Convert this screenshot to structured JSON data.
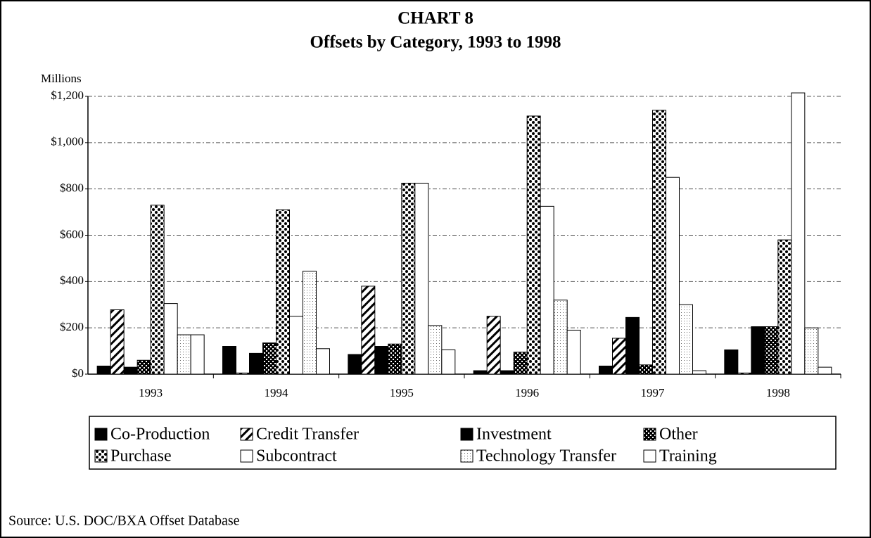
{
  "chart_data": {
    "type": "bar",
    "title": "CHART 8",
    "subtitle": "Offsets by Category, 1993 to 1998",
    "y_label": "Millions",
    "source": "Source: U.S. DOC/BXA Offset Database",
    "categories": [
      "1993",
      "1994",
      "1995",
      "1996",
      "1997",
      "1998"
    ],
    "series": [
      {
        "name": "Co-Production",
        "color": "#000000",
        "pattern": "solid",
        "values": [
          35,
          120,
          85,
          15,
          35,
          105
        ]
      },
      {
        "name": "Credit Transfer",
        "color": "#000000",
        "pattern": "hatch",
        "values": [
          278,
          5,
          380,
          250,
          155,
          5
        ]
      },
      {
        "name": "Investment",
        "color": "#000000",
        "pattern": "solid",
        "values": [
          30,
          90,
          120,
          15,
          245,
          205
        ]
      },
      {
        "name": "Other",
        "color": "#000000",
        "pattern": "checker",
        "values": [
          60,
          135,
          130,
          95,
          40,
          205
        ]
      },
      {
        "name": "Purchase",
        "color": "#000000",
        "pattern": "dots",
        "values": [
          730,
          710,
          825,
          1115,
          1140,
          580
        ]
      },
      {
        "name": "Subcontract",
        "color": "#000000",
        "pattern": "none",
        "values": [
          305,
          250,
          825,
          725,
          850,
          1215
        ]
      },
      {
        "name": "Technology Transfer",
        "color": "#000000",
        "pattern": "light-dots",
        "values": [
          170,
          445,
          210,
          320,
          300,
          200
        ]
      },
      {
        "name": "Training",
        "color": "#000000",
        "pattern": "none",
        "values": [
          170,
          110,
          105,
          190,
          15,
          30
        ]
      }
    ],
    "ylim": [
      0,
      1200
    ],
    "yticks": [
      {
        "value": 0,
        "label": "$0"
      },
      {
        "value": 200,
        "label": "$200"
      },
      {
        "value": 400,
        "label": "$400"
      },
      {
        "value": 600,
        "label": "$600"
      },
      {
        "value": 800,
        "label": "$800"
      },
      {
        "value": 1000,
        "label": "$1,000"
      },
      {
        "value": 1200,
        "label": "$1,200"
      }
    ],
    "grid": true
  }
}
